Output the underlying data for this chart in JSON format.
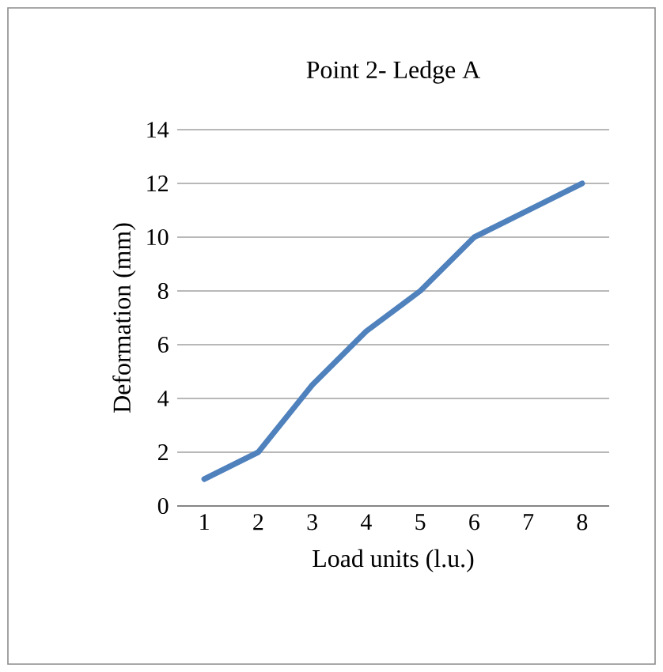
{
  "chart_data": {
    "type": "line",
    "title": "Point 2- Ledge A",
    "xlabel": "Load units (l.u.)",
    "ylabel": "Deformation (mm)",
    "categories": [
      "1",
      "2",
      "3",
      "4",
      "5",
      "6",
      "7",
      "8"
    ],
    "values": [
      1,
      2,
      4.5,
      6.5,
      8,
      10,
      11,
      12
    ],
    "color": "#4f81bd",
    "ylim": [
      0,
      14
    ],
    "yticks": [
      0,
      2,
      4,
      6,
      8,
      10,
      12,
      14
    ],
    "grid": "y"
  }
}
